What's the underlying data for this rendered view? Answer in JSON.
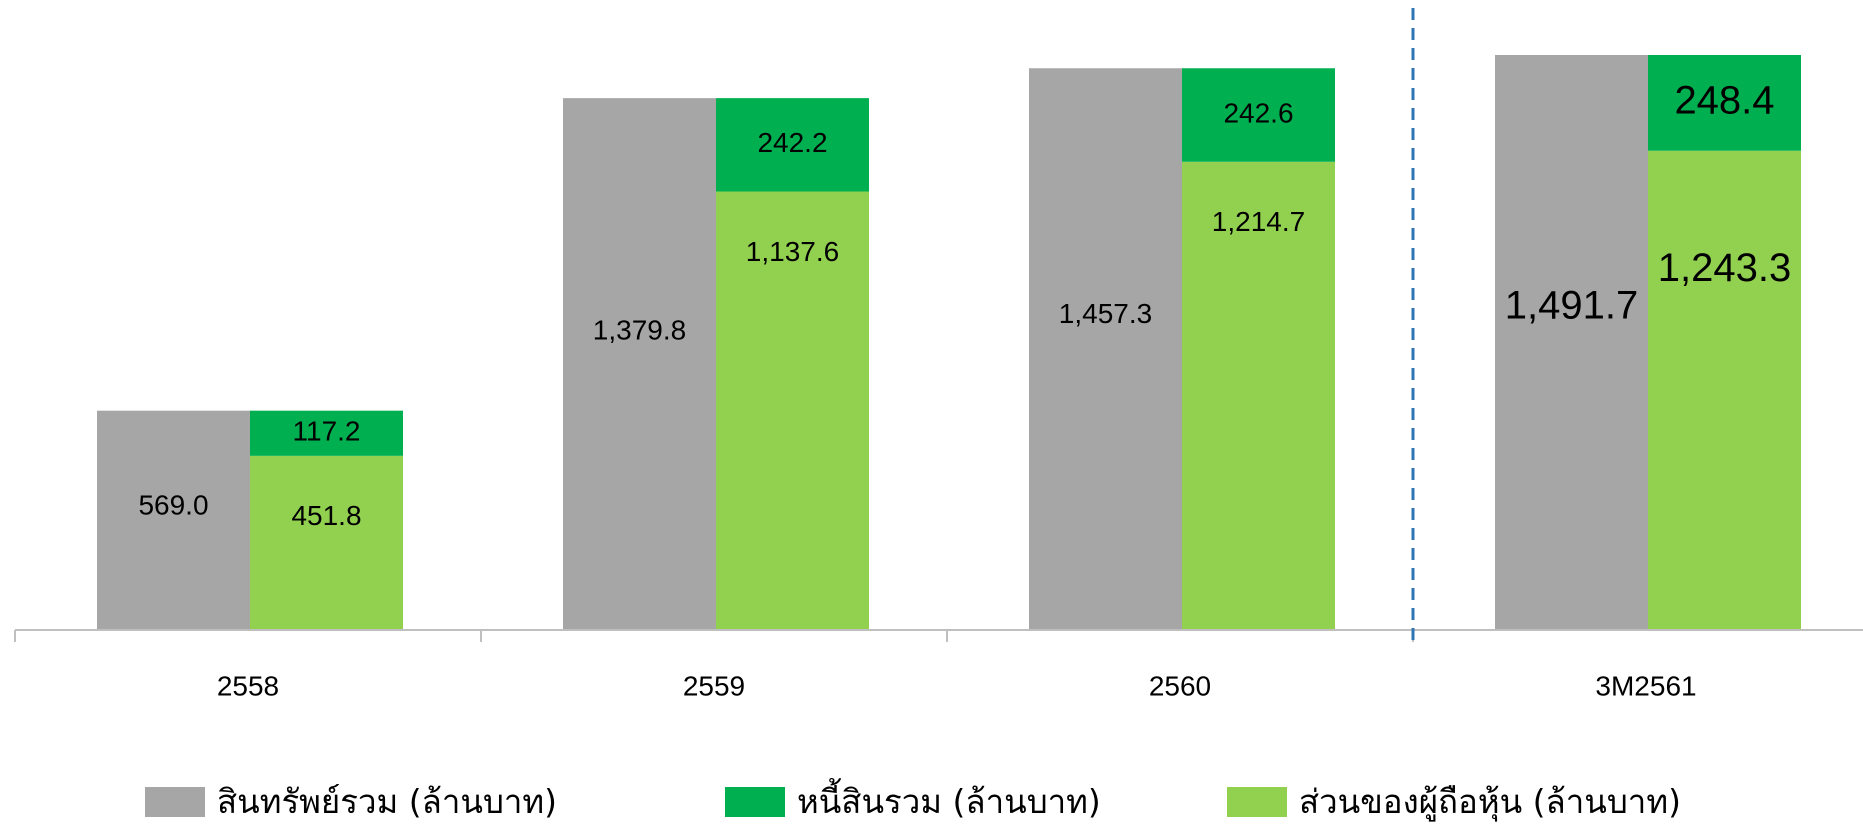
{
  "chart_data": {
    "type": "bar",
    "subtype": "grouped-and-stacked",
    "categories": [
      "2558",
      "2559",
      "2560",
      "3M2561"
    ],
    "series": [
      {
        "name": "สินทรัพย์รวม (ล้านบาท)",
        "color": "#a6a6a6",
        "stack": "assets",
        "values": [
          569.0,
          1379.8,
          1457.3,
          1491.7
        ],
        "labels": [
          "569.0",
          "1,379.8",
          "1,457.3",
          "1,491.7"
        ]
      },
      {
        "name": "ส่วนของผู้ถือหุ้น (ล้านบาท)",
        "color": "#92d050",
        "stack": "liab_equity",
        "values": [
          451.8,
          1137.6,
          1214.7,
          1243.3
        ],
        "labels": [
          "451.8",
          "1,137.6",
          "1,214.7",
          "1,243.3"
        ]
      },
      {
        "name": "หนี้สินรวม (ล้านบาท)",
        "color": "#00b050",
        "stack": "liab_equity",
        "values": [
          117.2,
          242.2,
          242.6,
          248.4
        ],
        "labels": [
          "117.2",
          "242.2",
          "242.6",
          "248.4"
        ]
      }
    ],
    "ylim": [
      0,
      1491.7
    ],
    "grid": false,
    "separator_after_category": "2560",
    "legend_position": "bottom"
  },
  "legend": [
    {
      "label": "สินทรัพย์รวม (ล้านบาท)",
      "color": "#a6a6a6"
    },
    {
      "label": "หนี้สินรวม (ล้านบาท)",
      "color": "#00b050"
    },
    {
      "label": "ส่วนของผู้ถือหุ้น (ล้านบาท)",
      "color": "#92d050"
    }
  ]
}
